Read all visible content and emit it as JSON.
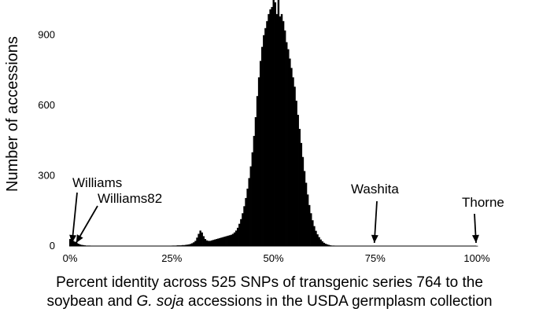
{
  "chart_data": {
    "type": "bar",
    "title": "",
    "ylabel": "Number of accessions",
    "xlabel": [
      "Percent identity across 525 SNPs of transgenic series 764 to the",
      "soybean and ",
      "G. soja",
      " accessions in the USDA germplasm collection"
    ],
    "xlim": [
      0,
      100
    ],
    "ylim": [
      0,
      1050
    ],
    "x_ticks": [
      0,
      25,
      50,
      75,
      100
    ],
    "x_tick_labels": [
      "0%",
      "25%",
      "50%",
      "75%",
      "100%"
    ],
    "y_ticks": [
      0,
      300,
      600,
      900
    ],
    "y_tick_labels": [
      "0",
      "300",
      "600",
      "900"
    ],
    "grid": false,
    "bar_color": "#000000",
    "histogram": {
      "bin_width_percent": 0.4,
      "bin_start_percent": 0,
      "counts": [
        30,
        26,
        22,
        18,
        14,
        10,
        7,
        5,
        4,
        3,
        2,
        2,
        2,
        1,
        1,
        1,
        1,
        1,
        1,
        1,
        1,
        1,
        1,
        1,
        1,
        1,
        1,
        1,
        1,
        1,
        1,
        1,
        1,
        1,
        1,
        1,
        1,
        1,
        1,
        1,
        1,
        1,
        1,
        1,
        1,
        1,
        1,
        1,
        1,
        1,
        1,
        1,
        1,
        1,
        1,
        1,
        1,
        1,
        1,
        1,
        1,
        1,
        1,
        2,
        2,
        2,
        3,
        3,
        3,
        4,
        4,
        5,
        6,
        7,
        9,
        12,
        16,
        22,
        36,
        52,
        66,
        58,
        42,
        30,
        24,
        22,
        22,
        24,
        26,
        28,
        30,
        32,
        34,
        36,
        38,
        40,
        42,
        44,
        46,
        48,
        52,
        58,
        66,
        78,
        95,
        115,
        140,
        170,
        205,
        245,
        290,
        340,
        400,
        470,
        550,
        640,
        720,
        790,
        850,
        900,
        930,
        960,
        990,
        1010,
        1020,
        1070,
        1040,
        990,
        1050,
        980,
        990,
        960,
        920,
        870,
        840,
        800,
        760,
        720,
        680,
        620,
        560,
        500,
        440,
        380,
        320,
        270,
        220,
        175,
        140,
        110,
        85,
        65,
        50,
        38,
        28,
        20,
        14,
        10,
        7,
        5,
        3,
        2,
        2,
        1,
        1,
        1,
        1,
        1,
        1,
        1,
        1,
        1,
        1,
        1,
        1,
        1,
        1,
        1,
        1,
        1,
        1,
        1,
        1,
        1,
        1,
        1,
        1,
        1,
        1,
        1,
        1,
        1,
        1,
        1,
        1,
        1,
        1,
        1,
        1,
        1,
        1,
        1,
        1,
        1,
        1,
        1,
        1,
        1,
        1,
        1,
        1,
        1,
        1,
        1,
        1,
        1,
        1,
        1,
        1,
        1,
        1,
        1,
        1,
        1,
        1,
        1,
        1,
        1,
        1,
        1,
        1,
        1,
        1,
        1,
        1,
        1,
        1,
        1,
        1,
        1,
        1,
        1,
        1,
        1,
        1,
        1,
        1,
        1,
        1,
        1,
        1
      ]
    },
    "annotations": [
      {
        "label": "Williams",
        "x": 0.5
      },
      {
        "label": "Williams82",
        "x": 1.5
      },
      {
        "label": "Washita",
        "x": 75
      },
      {
        "label": "Thorne",
        "x": 100
      }
    ]
  }
}
